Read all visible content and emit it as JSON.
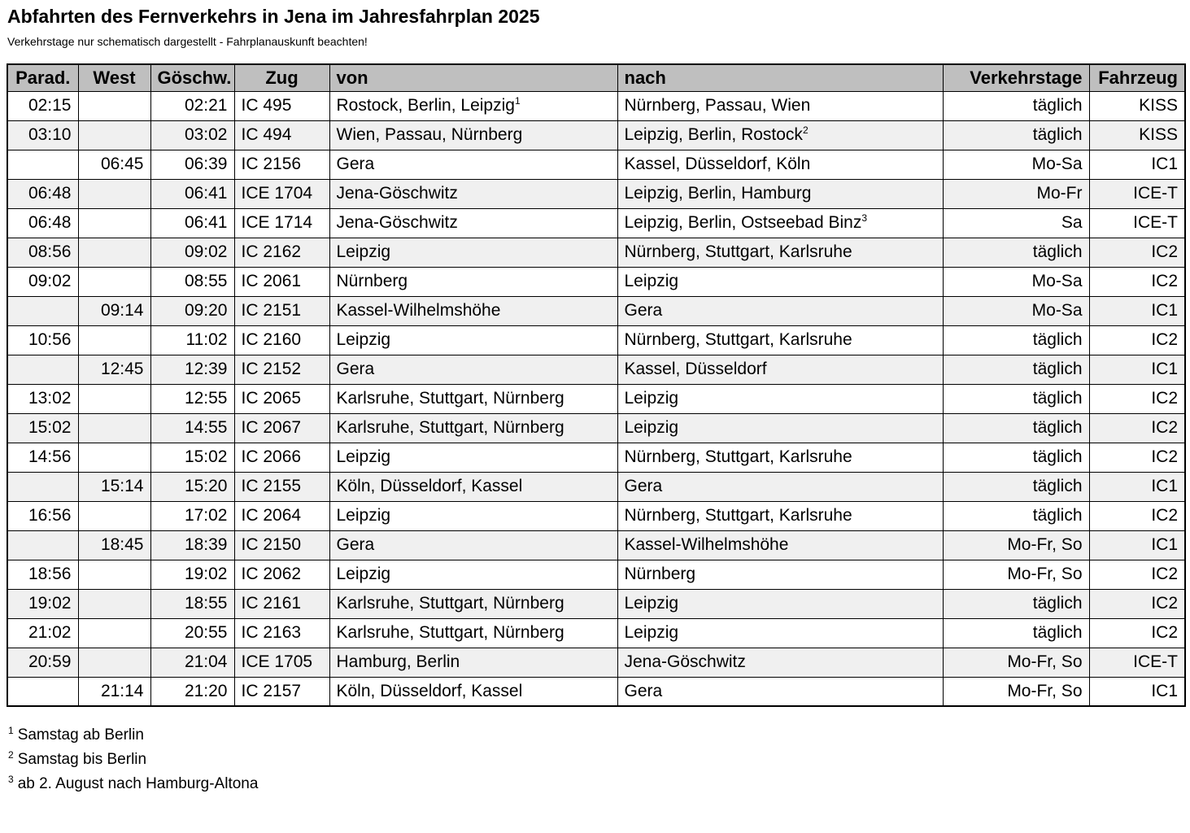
{
  "page": {
    "title": "Abfahrten des Fernverkehrs in Jena im Jahresfahrplan 2025",
    "subtitle": "Verkehrstage nur schematisch dargestellt - Fahrplanauskunft beachten!"
  },
  "colors": {
    "header_bg": "#bfbfbf",
    "stripe_bg": "#f0f0f0",
    "border": "#000000",
    "text": "#000000"
  },
  "table": {
    "headers": [
      "Parad.",
      "West",
      "Göschw.",
      "Zug",
      "von",
      "nach",
      "Verkehrstage",
      "Fahrzeug"
    ],
    "rows": [
      {
        "parad": "02:15",
        "west": "",
        "goeschw": "02:21",
        "zug": "IC 495",
        "von": "Rostock, Berlin, Leipzig",
        "von_sup": "1",
        "nach": "Nürnberg, Passau, Wien",
        "nach_sup": "",
        "verkehrstage": "täglich",
        "fahrzeug": "KISS"
      },
      {
        "parad": "03:10",
        "west": "",
        "goeschw": "03:02",
        "zug": "IC 494",
        "von": "Wien, Passau, Nürnberg",
        "von_sup": "",
        "nach": "Leipzig, Berlin, Rostock",
        "nach_sup": "2",
        "verkehrstage": "täglich",
        "fahrzeug": "KISS"
      },
      {
        "parad": "",
        "west": "06:45",
        "goeschw": "06:39",
        "zug": "IC 2156",
        "von": "Gera",
        "von_sup": "",
        "nach": "Kassel, Düsseldorf, Köln",
        "nach_sup": "",
        "verkehrstage": "Mo-Sa",
        "fahrzeug": "IC1"
      },
      {
        "parad": "06:48",
        "west": "",
        "goeschw": "06:41",
        "zug": "ICE 1704",
        "von": "Jena-Göschwitz",
        "von_sup": "",
        "nach": "Leipzig, Berlin, Hamburg",
        "nach_sup": "",
        "verkehrstage": "Mo-Fr",
        "fahrzeug": "ICE-T"
      },
      {
        "parad": "06:48",
        "west": "",
        "goeschw": "06:41",
        "zug": "ICE 1714",
        "von": "Jena-Göschwitz",
        "von_sup": "",
        "nach": "Leipzig, Berlin, Ostseebad Binz",
        "nach_sup": "3",
        "verkehrstage": "Sa",
        "fahrzeug": "ICE-T"
      },
      {
        "parad": "08:56",
        "west": "",
        "goeschw": "09:02",
        "zug": "IC 2162",
        "von": "Leipzig",
        "von_sup": "",
        "nach": "Nürnberg, Stuttgart, Karlsruhe",
        "nach_sup": "",
        "verkehrstage": "täglich",
        "fahrzeug": "IC2"
      },
      {
        "parad": "09:02",
        "west": "",
        "goeschw": "08:55",
        "zug": "IC 2061",
        "von": "Nürnberg",
        "von_sup": "",
        "nach": "Leipzig",
        "nach_sup": "",
        "verkehrstage": "Mo-Sa",
        "fahrzeug": "IC2"
      },
      {
        "parad": "",
        "west": "09:14",
        "goeschw": "09:20",
        "zug": "IC 2151",
        "von": "Kassel-Wilhelmshöhe",
        "von_sup": "",
        "nach": "Gera",
        "nach_sup": "",
        "verkehrstage": "Mo-Sa",
        "fahrzeug": "IC1"
      },
      {
        "parad": "10:56",
        "west": "",
        "goeschw": "11:02",
        "zug": "IC 2160",
        "von": "Leipzig",
        "von_sup": "",
        "nach": "Nürnberg, Stuttgart, Karlsruhe",
        "nach_sup": "",
        "verkehrstage": "täglich",
        "fahrzeug": "IC2"
      },
      {
        "parad": "",
        "west": "12:45",
        "goeschw": "12:39",
        "zug": "IC 2152",
        "von": "Gera",
        "von_sup": "",
        "nach": "Kassel, Düsseldorf",
        "nach_sup": "",
        "verkehrstage": "täglich",
        "fahrzeug": "IC1"
      },
      {
        "parad": "13:02",
        "west": "",
        "goeschw": "12:55",
        "zug": "IC 2065",
        "von": "Karlsruhe, Stuttgart, Nürnberg",
        "von_sup": "",
        "nach": "Leipzig",
        "nach_sup": "",
        "verkehrstage": "täglich",
        "fahrzeug": "IC2"
      },
      {
        "parad": "15:02",
        "west": "",
        "goeschw": "14:55",
        "zug": "IC 2067",
        "von": "Karlsruhe, Stuttgart, Nürnberg",
        "von_sup": "",
        "nach": "Leipzig",
        "nach_sup": "",
        "verkehrstage": "täglich",
        "fahrzeug": "IC2"
      },
      {
        "parad": "14:56",
        "west": "",
        "goeschw": "15:02",
        "zug": "IC 2066",
        "von": "Leipzig",
        "von_sup": "",
        "nach": "Nürnberg, Stuttgart, Karlsruhe",
        "nach_sup": "",
        "verkehrstage": "täglich",
        "fahrzeug": "IC2"
      },
      {
        "parad": "",
        "west": "15:14",
        "goeschw": "15:20",
        "zug": "IC 2155",
        "von": "Köln, Düsseldorf, Kassel",
        "von_sup": "",
        "nach": "Gera",
        "nach_sup": "",
        "verkehrstage": "täglich",
        "fahrzeug": "IC1"
      },
      {
        "parad": "16:56",
        "west": "",
        "goeschw": "17:02",
        "zug": "IC 2064",
        "von": "Leipzig",
        "von_sup": "",
        "nach": "Nürnberg, Stuttgart, Karlsruhe",
        "nach_sup": "",
        "verkehrstage": "täglich",
        "fahrzeug": "IC2"
      },
      {
        "parad": "",
        "west": "18:45",
        "goeschw": "18:39",
        "zug": "IC 2150",
        "von": "Gera",
        "von_sup": "",
        "nach": "Kassel-Wilhelmshöhe",
        "nach_sup": "",
        "verkehrstage": "Mo-Fr, So",
        "fahrzeug": "IC1"
      },
      {
        "parad": "18:56",
        "west": "",
        "goeschw": "19:02",
        "zug": "IC 2062",
        "von": "Leipzig",
        "von_sup": "",
        "nach": "Nürnberg",
        "nach_sup": "",
        "verkehrstage": "Mo-Fr, So",
        "fahrzeug": "IC2"
      },
      {
        "parad": "19:02",
        "west": "",
        "goeschw": "18:55",
        "zug": "IC 2161",
        "von": "Karlsruhe, Stuttgart, Nürnberg",
        "von_sup": "",
        "nach": "Leipzig",
        "nach_sup": "",
        "verkehrstage": "täglich",
        "fahrzeug": "IC2"
      },
      {
        "parad": "21:02",
        "west": "",
        "goeschw": "20:55",
        "zug": "IC 2163",
        "von": "Karlsruhe, Stuttgart, Nürnberg",
        "von_sup": "",
        "nach": "Leipzig",
        "nach_sup": "",
        "verkehrstage": "täglich",
        "fahrzeug": "IC2"
      },
      {
        "parad": "20:59",
        "west": "",
        "goeschw": "21:04",
        "zug": "ICE 1705",
        "von": "Hamburg, Berlin",
        "von_sup": "",
        "nach": "Jena-Göschwitz",
        "nach_sup": "",
        "verkehrstage": "Mo-Fr, So",
        "fahrzeug": "ICE-T"
      },
      {
        "parad": "",
        "west": "21:14",
        "goeschw": "21:20",
        "zug": "IC 2157",
        "von": "Köln, Düsseldorf, Kassel",
        "von_sup": "",
        "nach": "Gera",
        "nach_sup": "",
        "verkehrstage": "Mo-Fr, So",
        "fahrzeug": "IC1"
      }
    ],
    "footnotes": [
      {
        "marker": "1",
        "text": "Samstag ab Berlin"
      },
      {
        "marker": "2",
        "text": "Samstag bis Berlin"
      },
      {
        "marker": "3",
        "text": "ab 2. August nach Hamburg-Altona"
      }
    ]
  }
}
